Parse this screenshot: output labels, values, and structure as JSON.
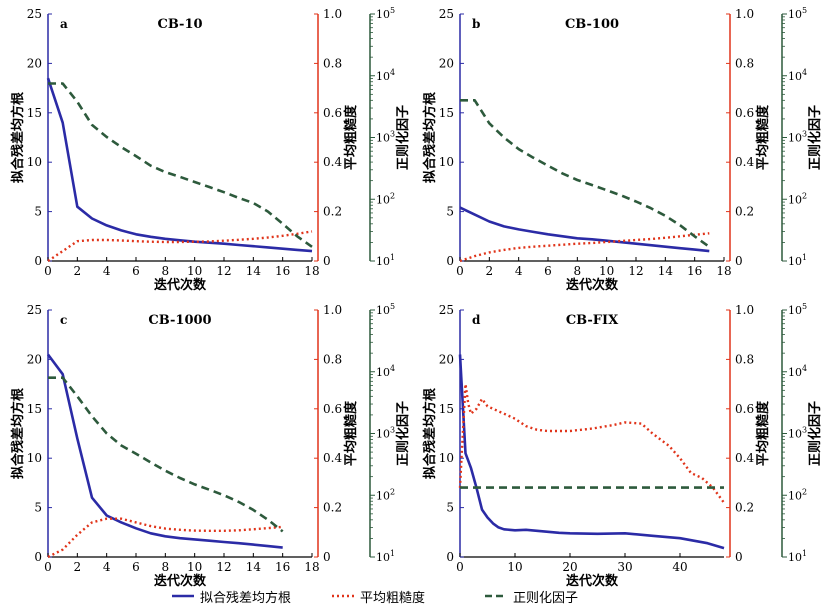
{
  "legend": {
    "items": [
      {
        "label": "拟合残差均方根",
        "color": "#2b2ba6",
        "dash": "solid"
      },
      {
        "label": "平均粗糙度",
        "color": "#e0341a",
        "dash": "dotted"
      },
      {
        "label": "正则化因子",
        "color": "#2d5a3c",
        "dash": "dashed"
      }
    ]
  },
  "colors": {
    "rms": "#2b2ba6",
    "rough": "#e0341a",
    "reg": "#2d5a3c"
  },
  "chart_data": [
    {
      "type": "line",
      "panel_letter": "a",
      "title": "CB-10",
      "xlabel": "迭代次数",
      "ylabel_left": "拟合残差均方根",
      "ylabel_right1": "平均粗糙度",
      "ylabel_right2": "正则化因子",
      "xlim": [
        0,
        18
      ],
      "xticks": [
        0,
        2,
        4,
        6,
        8,
        10,
        12,
        14,
        16,
        18
      ],
      "ylim_left": [
        0,
        25
      ],
      "yticks_left": [
        0,
        5,
        10,
        15,
        20,
        25
      ],
      "ylim_right1": [
        0,
        1.0
      ],
      "yticks_right1": [
        "0",
        "0.2",
        "0.4",
        "0.6",
        "0.8",
        "1.0"
      ],
      "ylim_right2": [
        10,
        100000
      ],
      "ylog_right2": true,
      "series": [
        {
          "name": "拟合残差均方根",
          "axis": "left",
          "x": [
            0,
            1,
            2,
            3,
            4,
            5,
            6,
            7,
            8,
            9,
            10,
            11,
            12,
            13,
            14,
            15,
            16,
            17,
            18
          ],
          "y": [
            18.5,
            14,
            5.5,
            4.3,
            3.6,
            3.1,
            2.7,
            2.45,
            2.25,
            2.1,
            1.95,
            1.85,
            1.75,
            1.62,
            1.5,
            1.38,
            1.25,
            1.12,
            1.0
          ]
        },
        {
          "name": "平均粗糙度",
          "axis": "right1",
          "x": [
            0,
            1,
            2,
            3,
            4,
            5,
            6,
            7,
            8,
            9,
            10,
            11,
            12,
            13,
            14,
            15,
            16,
            17,
            18
          ],
          "y": [
            0.0,
            0.04,
            0.08,
            0.085,
            0.085,
            0.083,
            0.08,
            0.078,
            0.077,
            0.077,
            0.078,
            0.079,
            0.082,
            0.086,
            0.09,
            0.095,
            0.102,
            0.11,
            0.12
          ]
        },
        {
          "name": "正则化因子",
          "axis": "right2",
          "x": [
            0,
            1,
            2,
            3,
            4,
            5,
            6,
            7,
            8,
            9,
            10,
            11,
            12,
            13,
            14,
            15,
            16,
            17,
            18
          ],
          "y": [
            7500,
            7500,
            3800,
            1600,
            1020,
            700,
            500,
            350,
            275,
            230,
            190,
            158,
            130,
            105,
            87,
            63,
            40,
            25,
            17
          ]
        }
      ]
    },
    {
      "type": "line",
      "panel_letter": "b",
      "title": "CB-100",
      "xlabel": "迭代次数",
      "ylabel_left": "拟合残差均方根",
      "ylabel_right1": "平均粗糙度",
      "ylabel_right2": "正则化因子",
      "xlim": [
        0,
        18
      ],
      "xticks": [
        0,
        2,
        4,
        6,
        8,
        10,
        12,
        14,
        16,
        18
      ],
      "ylim_left": [
        0,
        25
      ],
      "yticks_left": [
        0,
        5,
        10,
        15,
        20,
        25
      ],
      "ylim_right1": [
        0,
        1.0
      ],
      "yticks_right1": [
        "0",
        "0.2",
        "0.4",
        "0.6",
        "0.8",
        "1.0"
      ],
      "ylim_right2": [
        10,
        100000
      ],
      "ylog_right2": true,
      "series": [
        {
          "name": "拟合残差均方根",
          "axis": "left",
          "x": [
            0,
            1,
            2,
            3,
            4,
            5,
            6,
            7,
            8,
            9,
            10,
            11,
            12,
            13,
            14,
            15,
            16,
            17
          ],
          "y": [
            5.4,
            4.7,
            4.0,
            3.5,
            3.2,
            2.95,
            2.7,
            2.5,
            2.3,
            2.2,
            2.05,
            1.9,
            1.75,
            1.6,
            1.45,
            1.3,
            1.15,
            1.0
          ]
        },
        {
          "name": "平均粗糙度",
          "axis": "right1",
          "x": [
            0,
            1,
            2,
            3,
            4,
            5,
            6,
            7,
            8,
            9,
            10,
            11,
            12,
            13,
            14,
            15,
            16,
            17
          ],
          "y": [
            0.0,
            0.02,
            0.035,
            0.045,
            0.053,
            0.058,
            0.062,
            0.066,
            0.07,
            0.073,
            0.077,
            0.081,
            0.085,
            0.089,
            0.094,
            0.1,
            0.106,
            0.112
          ]
        },
        {
          "name": "正则化因子",
          "axis": "right2",
          "x": [
            0,
            1,
            2,
            3,
            4,
            5,
            6,
            7,
            8,
            9,
            10,
            11,
            12,
            13,
            14,
            15,
            16,
            17
          ],
          "y": [
            4000,
            4000,
            1700,
            1000,
            650,
            470,
            350,
            260,
            205,
            170,
            140,
            115,
            92,
            72,
            54,
            38,
            25,
            17
          ]
        }
      ]
    },
    {
      "type": "line",
      "panel_letter": "c",
      "title": "CB-1000",
      "xlabel": "迭代次数",
      "ylabel_left": "拟合残差均方根",
      "ylabel_right1": "平均粗糙度",
      "ylabel_right2": "正则化因子",
      "xlim": [
        0,
        18
      ],
      "xticks": [
        0,
        2,
        4,
        6,
        8,
        10,
        12,
        14,
        16,
        18
      ],
      "ylim_left": [
        0,
        25
      ],
      "yticks_left": [
        0,
        5,
        10,
        15,
        20,
        25
      ],
      "ylim_right1": [
        0,
        1.0
      ],
      "yticks_right1": [
        "0",
        "0.2",
        "0.4",
        "0.6",
        "0.8",
        "1.0"
      ],
      "ylim_right2": [
        10,
        100000
      ],
      "ylog_right2": true,
      "series": [
        {
          "name": "拟合残差均方根",
          "axis": "left",
          "x": [
            0,
            1,
            2,
            3,
            4,
            5,
            6,
            7,
            8,
            9,
            10,
            11,
            12,
            13,
            14,
            15,
            16
          ],
          "y": [
            20.5,
            18.5,
            12,
            6,
            4.2,
            3.5,
            2.9,
            2.4,
            2.1,
            1.9,
            1.78,
            1.65,
            1.52,
            1.4,
            1.25,
            1.1,
            0.95
          ]
        },
        {
          "name": "平均粗糙度",
          "axis": "right1",
          "x": [
            0,
            1,
            2,
            3,
            4,
            5,
            6,
            7,
            8,
            9,
            10,
            11,
            12,
            13,
            14,
            15,
            16
          ],
          "y": [
            0.0,
            0.03,
            0.09,
            0.14,
            0.155,
            0.155,
            0.14,
            0.125,
            0.115,
            0.11,
            0.107,
            0.106,
            0.106,
            0.108,
            0.112,
            0.117,
            0.122
          ]
        },
        {
          "name": "正则化因子",
          "axis": "right2",
          "x": [
            0,
            1,
            2,
            3,
            4,
            5,
            6,
            7,
            8,
            9,
            10,
            11,
            12,
            13,
            14,
            15,
            16
          ],
          "y": [
            8000,
            8000,
            4000,
            1900,
            1000,
            640,
            470,
            340,
            250,
            190,
            150,
            123,
            100,
            78,
            58,
            40,
            26
          ]
        }
      ]
    },
    {
      "type": "line",
      "panel_letter": "d",
      "title": "CB-FIX",
      "xlabel": "迭代次数",
      "ylabel_left": "拟合残差均方根",
      "ylabel_right1": "平均粗糙度",
      "ylabel_right2": "正则化因子",
      "xlim": [
        0,
        48
      ],
      "xticks": [
        0,
        10,
        20,
        30,
        40
      ],
      "ylim_left": [
        0,
        25
      ],
      "yticks_left": [
        0,
        5,
        10,
        15,
        20,
        25
      ],
      "ylim_right1": [
        0,
        1.0
      ],
      "yticks_right1": [
        "0",
        "0.2",
        "0.4",
        "0.6",
        "0.8",
        "1.0"
      ],
      "ylim_right2": [
        10,
        100000
      ],
      "ylog_right2": true,
      "series": [
        {
          "name": "拟合残差均方根",
          "axis": "left",
          "x": [
            0,
            1,
            2,
            3,
            4,
            5,
            6,
            7,
            8,
            10,
            12,
            15,
            18,
            20,
            25,
            30,
            35,
            40,
            45,
            48
          ],
          "y": [
            20.5,
            10.5,
            9,
            7,
            4.8,
            4.0,
            3.4,
            3.0,
            2.8,
            2.7,
            2.75,
            2.6,
            2.45,
            2.4,
            2.35,
            2.4,
            2.15,
            1.9,
            1.4,
            0.9
          ]
        },
        {
          "name": "平均粗糙度",
          "axis": "right1",
          "x": [
            0,
            0.5,
            1,
            1.5,
            2,
            3,
            4,
            5,
            6,
            8,
            10,
            12,
            14,
            16,
            18,
            20,
            24,
            28,
            30,
            33,
            35,
            38,
            40,
            42,
            44,
            46,
            48
          ],
          "y": [
            0.28,
            0.5,
            0.7,
            0.62,
            0.58,
            0.6,
            0.64,
            0.61,
            0.6,
            0.58,
            0.56,
            0.53,
            0.515,
            0.51,
            0.51,
            0.51,
            0.52,
            0.535,
            0.545,
            0.54,
            0.5,
            0.45,
            0.4,
            0.34,
            0.32,
            0.28,
            0.22
          ]
        },
        {
          "name": "正则化因子",
          "axis": "right2",
          "x": [
            0,
            48
          ],
          "y": [
            133,
            133
          ]
        }
      ]
    }
  ]
}
